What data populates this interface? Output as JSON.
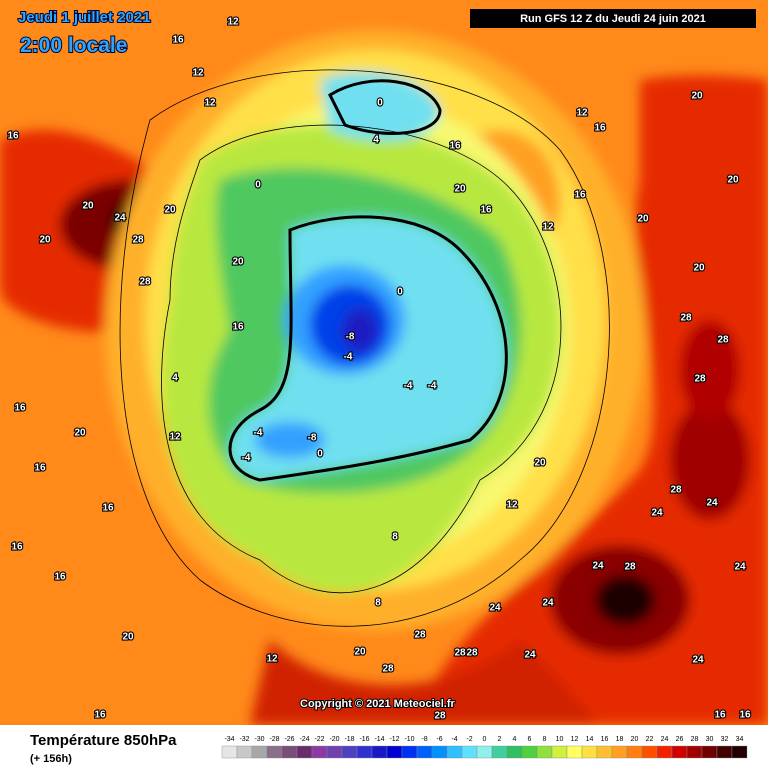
{
  "header": {
    "date": "Jeudi 1 juillet 2021",
    "time": "2:00 locale",
    "run": "Run GFS 12 Z du Jeudi 24 juin 2021"
  },
  "footer": {
    "title": "Température 850hPa",
    "forecast": "(+ 156h)",
    "copyright": "Copyright © 2021 Meteociel.fr"
  },
  "legend": {
    "ticks": [
      -34,
      -32,
      -30,
      -28,
      -26,
      -24,
      -22,
      -20,
      -18,
      -16,
      -14,
      -12,
      -10,
      -8,
      -6,
      -4,
      -2,
      0,
      2,
      4,
      6,
      8,
      10,
      12,
      14,
      16,
      18,
      20,
      22,
      24,
      26,
      28,
      30,
      32,
      34
    ],
    "colors": [
      "#e6e6e6",
      "#c8c8c8",
      "#a8a8a8",
      "#8c6e8c",
      "#7a4c7a",
      "#6a2c6a",
      "#8a3aa0",
      "#7040b0",
      "#5040c0",
      "#3030d0",
      "#1818c8",
      "#0000d0",
      "#0030f0",
      "#0060ff",
      "#0090ff",
      "#30c0ff",
      "#60e0ff",
      "#90f0f0",
      "#40d0a0",
      "#30c060",
      "#50d040",
      "#90e040",
      "#d0f040",
      "#ffff60",
      "#ffe040",
      "#ffc030",
      "#ffa020",
      "#ff8010",
      "#ff5000",
      "#f02000",
      "#d00000",
      "#a00000",
      "#700000",
      "#400000",
      "#200000"
    ]
  },
  "contour_labels": [
    "24",
    "28",
    "20",
    "20",
    "28",
    "20",
    "20",
    "16",
    "16",
    "12",
    "12",
    "16",
    "12",
    "0",
    "4",
    "0",
    "0",
    "-8",
    "-4",
    "-4",
    "-4",
    "-4",
    "-4",
    "-8",
    "0",
    "16",
    "20",
    "16",
    "12",
    "16",
    "20",
    "20",
    "20",
    "20",
    "28",
    "28",
    "28",
    "20",
    "28",
    "24",
    "24",
    "24",
    "28",
    "28",
    "28",
    "28",
    "24",
    "20",
    "12",
    "20",
    "16",
    "16",
    "16",
    "16",
    "20",
    "16",
    "12",
    "16",
    "12",
    "12",
    "8",
    "8",
    "4",
    "28",
    "16",
    "16",
    "16",
    "24",
    "24",
    "24",
    "24",
    "28"
  ]
}
